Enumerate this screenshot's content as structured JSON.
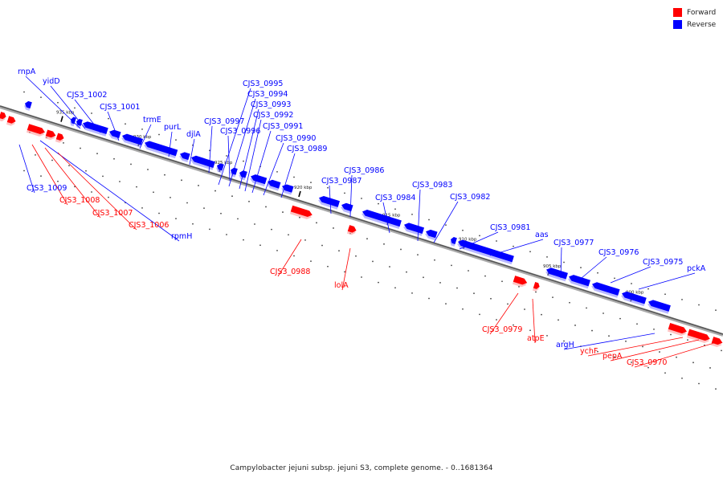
{
  "caption": "Campylobacter jejuni subsp. jejuni S3, complete genome. - 0..1681364",
  "legend": [
    {
      "label": "Forward",
      "color": "#ff0000"
    },
    {
      "label": "Reverse",
      "color": "#0000ff"
    }
  ],
  "colors": {
    "forward": "#ff0000",
    "reverse": "#0000ff",
    "backbone": "#888888"
  },
  "ticks": [
    "935 kbp",
    "930 kbp",
    "925 kbp",
    "920 kbp",
    "915 kbp",
    "910 kbp",
    "905 kbp",
    "900 kbp"
  ],
  "genes": {
    "reverse": [
      "rnpA",
      "yidD",
      "CJS3_1002",
      "CJS3_1001",
      "trmE",
      "purL",
      "djlA",
      "CJS3_0997",
      "CJS3_0996",
      "CJS3_0995",
      "CJS3_0994",
      "CJS3_0993",
      "CJS3_0992",
      "CJS3_0991",
      "CJS3_0990",
      "CJS3_0989",
      "CJS3_0987",
      "CJS3_0986",
      "CJS3_0984",
      "CJS3_0983",
      "CJS3_0982",
      "CJS3_0981",
      "aas",
      "CJS3_0977",
      "CJS3_0976",
      "CJS3_0975",
      "pckA",
      "CJS3_1009",
      "rpmH",
      "argH"
    ],
    "forward": [
      "CJS3_1008",
      "CJS3_1007",
      "CJS3_1006",
      "CJS3_0988",
      "lolA",
      "CJS3_0979",
      "atpE",
      "ychF",
      "pepA",
      "CJS3_0970"
    ]
  }
}
